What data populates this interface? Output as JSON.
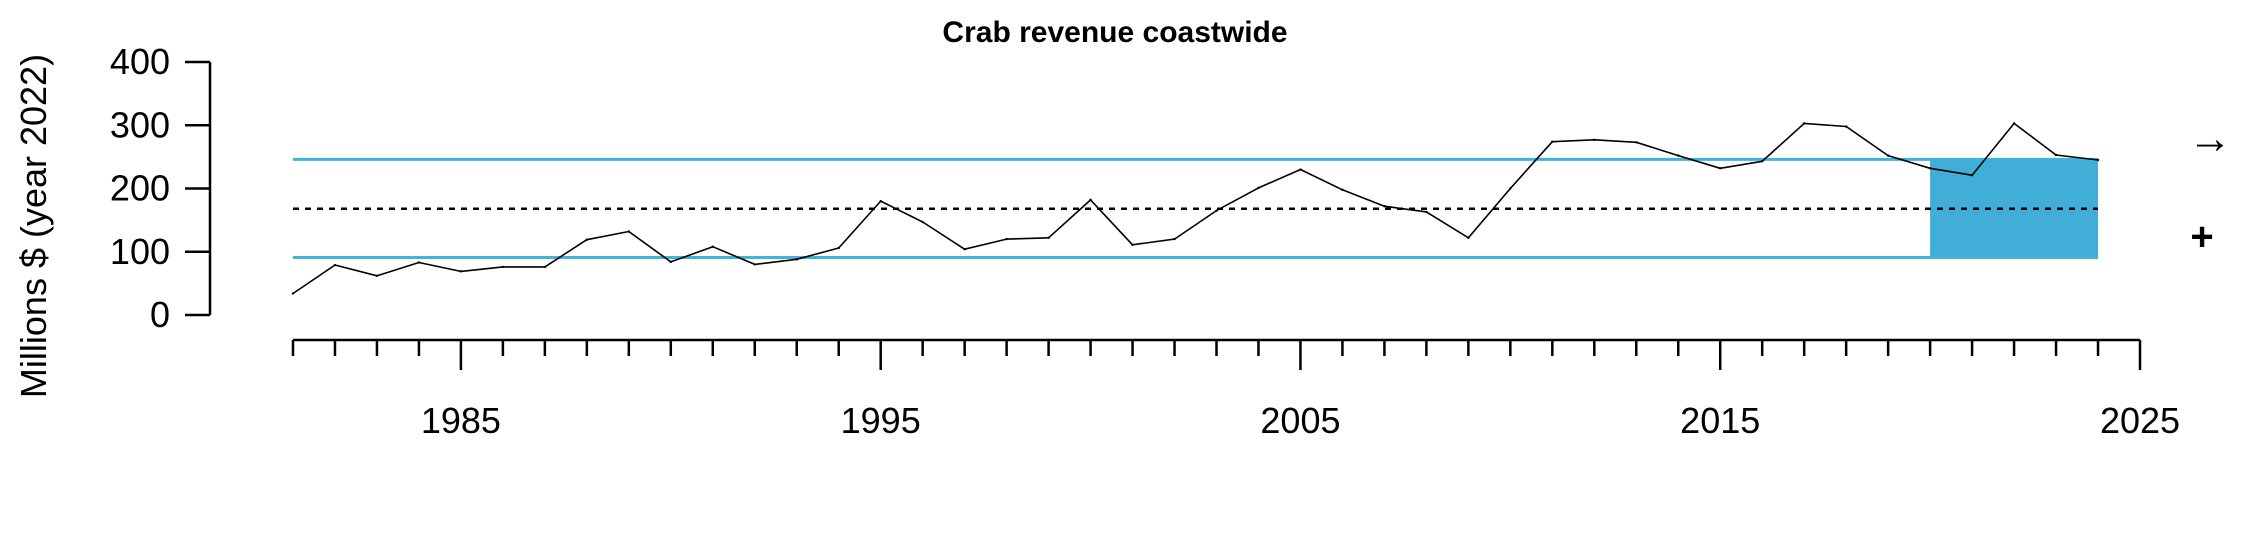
{
  "chart_data": {
    "type": "line",
    "title": "Crab revenue coastwide",
    "ylabel": "Millions $ (year 2022)",
    "xlabel": "",
    "xlim": [
      1981,
      2025
    ],
    "ylim": [
      0,
      400
    ],
    "x_ticks": [
      1985,
      1995,
      2005,
      2015,
      2025
    ],
    "y_ticks": [
      0,
      100,
      200,
      300,
      400
    ],
    "x_minor_ticks_every": 1,
    "grid": false,
    "series": [
      {
        "x": [
          1981,
          1982,
          1983,
          1984,
          1985,
          1986,
          1987,
          1988,
          1989,
          1990,
          1991,
          1992,
          1993,
          1994,
          1995,
          1996,
          1997,
          1998,
          1999,
          2000,
          2001,
          2002,
          2003,
          2004,
          2005,
          2006,
          2007,
          2008,
          2009,
          2010,
          2011,
          2012,
          2013,
          2014,
          2015,
          2016,
          2017,
          2018,
          2019,
          2020,
          2021,
          2022,
          2023,
          2024
        ],
        "values": [
          34,
          79,
          62,
          83,
          69,
          76,
          76,
          119,
          132,
          84,
          108,
          80,
          88,
          106,
          180,
          147,
          104,
          120,
          122,
          182,
          111,
          120,
          165,
          201,
          230,
          198,
          172,
          163,
          122,
          200,
          274,
          277,
          273,
          252,
          232,
          243,
          303,
          298,
          252,
          232,
          221,
          303,
          253,
          245
        ],
        "color": "#000000"
      }
    ],
    "reference_lines": {
      "mean": 168,
      "upper": 246,
      "lower": 91,
      "mean_color": "#000000",
      "band_color": "#40B3D9"
    },
    "recent_period": {
      "x_start": 2020,
      "x_end": 2024,
      "fill_color": "#40AED6"
    },
    "trend_indicator": "→",
    "status_indicator": "+"
  }
}
